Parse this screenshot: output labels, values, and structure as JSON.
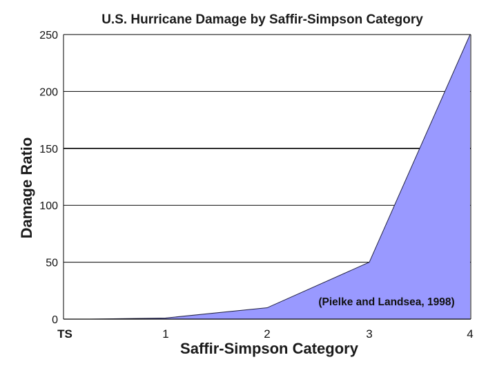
{
  "chart_data": {
    "type": "area",
    "title": "U.S. Hurricane Damage by Saffir-Simpson Category",
    "xlabel": "Saffir-Simpson Category",
    "ylabel": "Damage Ratio",
    "categories": [
      "TS",
      "1",
      "2",
      "3",
      "4"
    ],
    "values": [
      0,
      1,
      10,
      50,
      250
    ],
    "ylim": [
      0,
      250
    ],
    "yticks": [
      0,
      50,
      100,
      150,
      200,
      250
    ],
    "grid": "horizontal",
    "fill_color": "#9999ff",
    "annotation": "(Pielke and Landsea, 1998)"
  }
}
